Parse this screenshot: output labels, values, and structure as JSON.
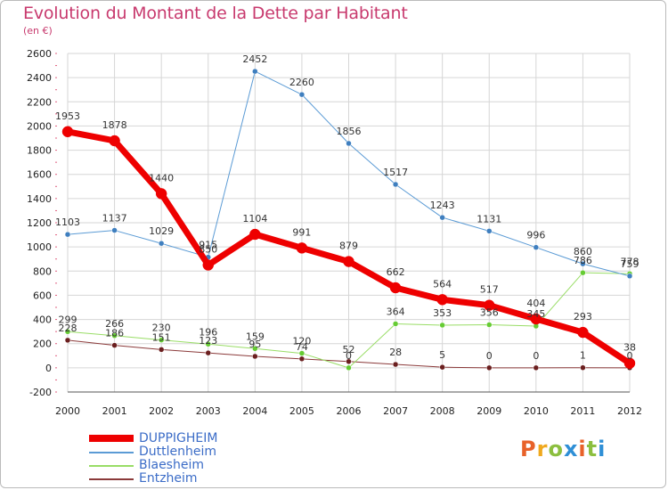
{
  "header": {
    "title": "Evolution du Montant de la Dette par Habitant",
    "subtitle": "(en €)"
  },
  "logo": {
    "text": "Proxiti",
    "colors": [
      "#e8622a",
      "#f0a91e",
      "#8cbf3f",
      "#2f8fd6",
      "#e8622a",
      "#8cbf3f",
      "#2f8fd6"
    ]
  },
  "chart_data": {
    "type": "line",
    "title": "Evolution du Montant de la Dette par Habitant",
    "subtitle": "(en €)",
    "xlabel": "",
    "ylabel": "",
    "x": [
      "2000",
      "2001",
      "2002",
      "2003",
      "2004",
      "2005",
      "2006",
      "2007",
      "2008",
      "2009",
      "2010",
      "2011",
      "2012"
    ],
    "ylim": [
      -200,
      2600
    ],
    "yticks": [
      -200,
      0,
      200,
      400,
      600,
      800,
      1000,
      1200,
      1400,
      1600,
      1800,
      2000,
      2200,
      2400,
      2600
    ],
    "grid": true,
    "legend_position": "bottom-left",
    "series": [
      {
        "name": "DUPPIGHEIM",
        "color": "#ee0000",
        "width": 7,
        "marker_color": "#ee0000",
        "values": [
          1953,
          1878,
          1440,
          850,
          1104,
          991,
          879,
          662,
          564,
          517,
          404,
          293,
          38
        ]
      },
      {
        "name": "Duttlenheim",
        "color": "#5b9bd5",
        "width": 1,
        "marker_color": "#3f7fbf",
        "values": [
          1103,
          1137,
          1029,
          915,
          2452,
          2260,
          1856,
          1517,
          1243,
          1131,
          996,
          860,
          759
        ]
      },
      {
        "name": "Blaesheim",
        "color": "#99dd66",
        "width": 1,
        "marker_color": "#66cc33",
        "values": [
          299,
          266,
          230,
          196,
          159,
          120,
          0,
          364,
          353,
          356,
          345,
          786,
          778
        ]
      },
      {
        "name": "Entzheim",
        "color": "#8b3a3a",
        "width": 1,
        "marker_color": "#6b1f1f",
        "values": [
          228,
          186,
          151,
          123,
          95,
          74,
          52,
          28,
          5,
          0,
          0,
          1,
          0
        ]
      }
    ]
  }
}
